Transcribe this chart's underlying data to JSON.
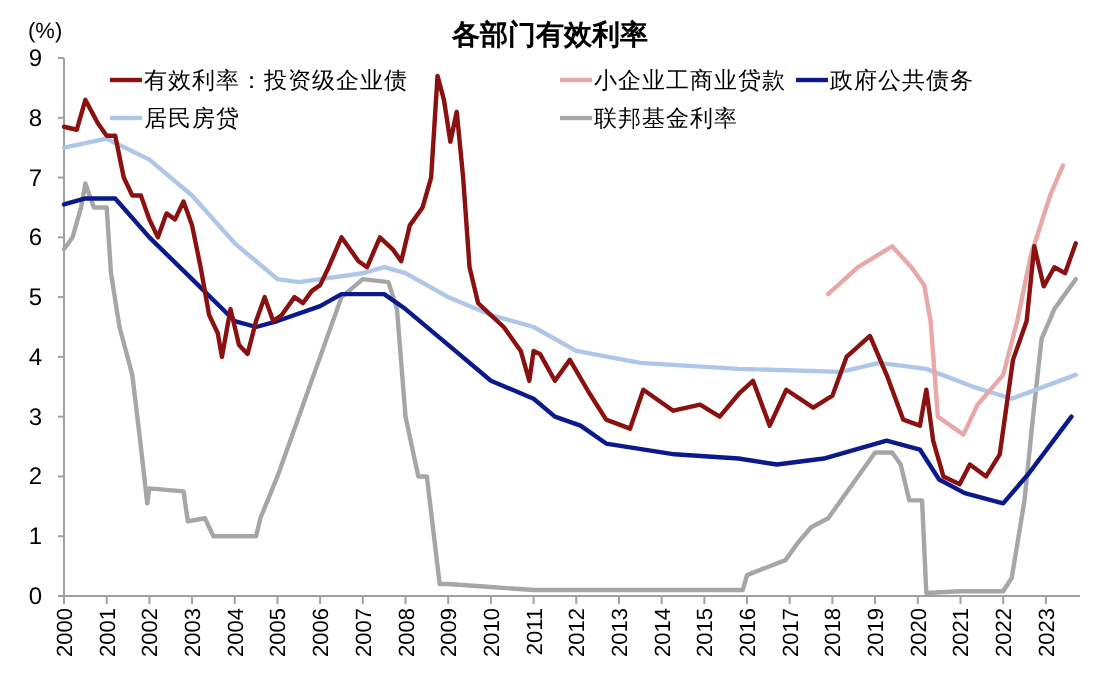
{
  "chart_data": {
    "type": "line",
    "title": "各部门有效利率",
    "ylabel": "(%)",
    "xlim": [
      2000,
      2023.8
    ],
    "xticks": [
      2000,
      2001,
      2002,
      2003,
      2004,
      2005,
      2006,
      2007,
      2008,
      2009,
      2010,
      2011,
      2012,
      2013,
      2014,
      2015,
      2016,
      2017,
      2018,
      2019,
      2020,
      2021,
      2022,
      2023
    ],
    "ylim": [
      0,
      9
    ],
    "yticks": [
      0,
      1,
      2,
      3,
      4,
      5,
      6,
      7,
      8,
      9
    ],
    "grid": false,
    "legend": "top",
    "marker": "none",
    "line_style": "solid",
    "series": [
      {
        "name": "有效利率：投资级企业债",
        "color": "#8b1010",
        "x": [
          2000,
          2000.3,
          2000.5,
          2000.8,
          2001.0,
          2001.2,
          2001.4,
          2001.6,
          2001.8,
          2002.0,
          2002.2,
          2002.4,
          2002.6,
          2002.8,
          2003.0,
          2003.2,
          2003.4,
          2003.6,
          2003.7,
          2003.9,
          2004.1,
          2004.3,
          2004.5,
          2004.7,
          2004.9,
          2005.1,
          2005.4,
          2005.6,
          2005.8,
          2006.0,
          2006.2,
          2006.5,
          2006.7,
          2006.9,
          2007.1,
          2007.4,
          2007.7,
          2007.9,
          2008.1,
          2008.4,
          2008.6,
          2008.75,
          2008.9,
          2009.05,
          2009.2,
          2009.35,
          2009.5,
          2009.7,
          2010.0,
          2010.3,
          2010.5,
          2010.7,
          2010.9,
          2011.0,
          2011.15,
          2011.5,
          2011.85,
          2012.3,
          2012.7,
          2013.26,
          2013.57,
          2014.27,
          2014.9,
          2015.36,
          2015.83,
          2016.14,
          2016.53,
          2016.92,
          2017.55,
          2018.0,
          2018.33,
          2018.88,
          2019.27,
          2019.66,
          2020.05,
          2020.2,
          2020.36,
          2020.6,
          2020.98,
          2021.22,
          2021.6,
          2021.92,
          2022.23,
          2022.55,
          2022.73,
          2022.95,
          2023.2,
          2023.45,
          2023.7
        ],
        "values": [
          7.85,
          7.8,
          8.3,
          7.9,
          7.7,
          7.7,
          7.0,
          6.7,
          6.7,
          6.3,
          6.0,
          6.4,
          6.3,
          6.6,
          6.2,
          5.5,
          4.7,
          4.4,
          4.0,
          4.8,
          4.2,
          4.05,
          4.6,
          5.0,
          4.6,
          4.7,
          5.0,
          4.9,
          5.1,
          5.2,
          5.5,
          6.0,
          5.8,
          5.6,
          5.5,
          6.0,
          5.8,
          5.6,
          6.2,
          6.5,
          7.0,
          8.7,
          8.3,
          7.6,
          8.1,
          7.0,
          5.5,
          4.9,
          4.7,
          4.5,
          4.3,
          4.1,
          3.6,
          4.1,
          4.05,
          3.6,
          3.95,
          3.4,
          2.95,
          2.8,
          3.45,
          3.1,
          3.2,
          3.0,
          3.4,
          3.6,
          2.85,
          3.45,
          3.15,
          3.35,
          4.0,
          4.35,
          3.7,
          2.95,
          2.85,
          3.45,
          2.6,
          2.0,
          1.87,
          2.2,
          2.0,
          2.37,
          3.95,
          4.6,
          5.85,
          5.18,
          5.5,
          5.4,
          5.9
        ]
      },
      {
        "name": "小企业工商业贷款",
        "color": "#e8a8a8",
        "x": [
          2017.9,
          2018.6,
          2019.4,
          2019.85,
          2020.15,
          2020.3,
          2020.47,
          2021.07,
          2021.4,
          2022.0,
          2022.33,
          2022.65,
          2023.1,
          2023.4
        ],
        "values": [
          5.05,
          5.5,
          5.85,
          5.5,
          5.2,
          4.6,
          3.0,
          2.7,
          3.2,
          3.7,
          4.6,
          5.7,
          6.7,
          7.2
        ]
      },
      {
        "name": "政府公共债务",
        "color": "#0a1a8a",
        "x": [
          2000,
          2000.5,
          2001.2,
          2002,
          2003,
          2004,
          2004.5,
          2005,
          2006,
          2006.5,
          2007.5,
          2008,
          2009,
          2010,
          2011,
          2011.5,
          2012.1,
          2012.7,
          2014.3,
          2015.8,
          2016.7,
          2017.8,
          2019.27,
          2020.05,
          2020.5,
          2021.1,
          2022.0,
          2022.6,
          2023.6
        ],
        "values": [
          6.55,
          6.65,
          6.65,
          6.0,
          5.3,
          4.6,
          4.5,
          4.6,
          4.85,
          5.05,
          5.05,
          4.8,
          4.2,
          3.6,
          3.3,
          3.0,
          2.85,
          2.55,
          2.37,
          2.3,
          2.2,
          2.3,
          2.6,
          2.45,
          1.95,
          1.72,
          1.55,
          2.05,
          3.0
        ]
      },
      {
        "name": "居民房贷",
        "color": "#aec7e8",
        "x": [
          2000,
          2001,
          2002,
          2003,
          2004,
          2005,
          2005.5,
          2006,
          2007,
          2007.5,
          2008,
          2009,
          2009.5,
          2010,
          2011,
          2012,
          2013.5,
          2015.8,
          2018.2,
          2019.1,
          2020.2,
          2021.3,
          2022.2,
          2023.7
        ],
        "values": [
          7.5,
          7.65,
          7.3,
          6.7,
          5.9,
          5.3,
          5.25,
          5.3,
          5.4,
          5.5,
          5.4,
          5.0,
          4.85,
          4.7,
          4.5,
          4.1,
          3.9,
          3.8,
          3.75,
          3.9,
          3.8,
          3.5,
          3.3,
          3.7
        ]
      },
      {
        "name": "联邦基金利率",
        "color": "#a6a6a6",
        "x": [
          2000,
          2000.2,
          2000.4,
          2000.5,
          2000.7,
          2001.0,
          2001.1,
          2001.3,
          2001.6,
          2001.8,
          2001.95,
          2002.0,
          2002.8,
          2002.9,
          2003.3,
          2003.5,
          2004.0,
          2004.5,
          2004.6,
          2005.0,
          2005.5,
          2006.0,
          2006.5,
          2007.0,
          2007.6,
          2007.8,
          2008.0,
          2008.3,
          2008.5,
          2008.8,
          2009.0,
          2010,
          2011,
          2015.9,
          2016.0,
          2016.9,
          2017.2,
          2017.5,
          2017.9,
          2018.2,
          2018.5,
          2018.8,
          2019.0,
          2019.4,
          2019.6,
          2019.8,
          2020.1,
          2020.2,
          2021,
          2022.0,
          2022.2,
          2022.5,
          2022.7,
          2022.9,
          2023.2,
          2023.5,
          2023.7
        ],
        "values": [
          5.8,
          6.0,
          6.5,
          6.9,
          6.5,
          6.5,
          5.4,
          4.5,
          3.7,
          2.5,
          1.55,
          1.8,
          1.75,
          1.25,
          1.3,
          1.0,
          1.0,
          1.0,
          1.3,
          2.0,
          3.0,
          4.0,
          5.0,
          5.3,
          5.25,
          4.8,
          3.0,
          2.0,
          2.0,
          0.2,
          0.2,
          0.15,
          0.1,
          0.1,
          0.35,
          0.6,
          0.9,
          1.15,
          1.3,
          1.6,
          1.9,
          2.2,
          2.4,
          2.4,
          2.2,
          1.6,
          1.6,
          0.05,
          0.08,
          0.08,
          0.3,
          1.6,
          3.0,
          4.3,
          4.8,
          5.1,
          5.3
        ]
      }
    ]
  }
}
